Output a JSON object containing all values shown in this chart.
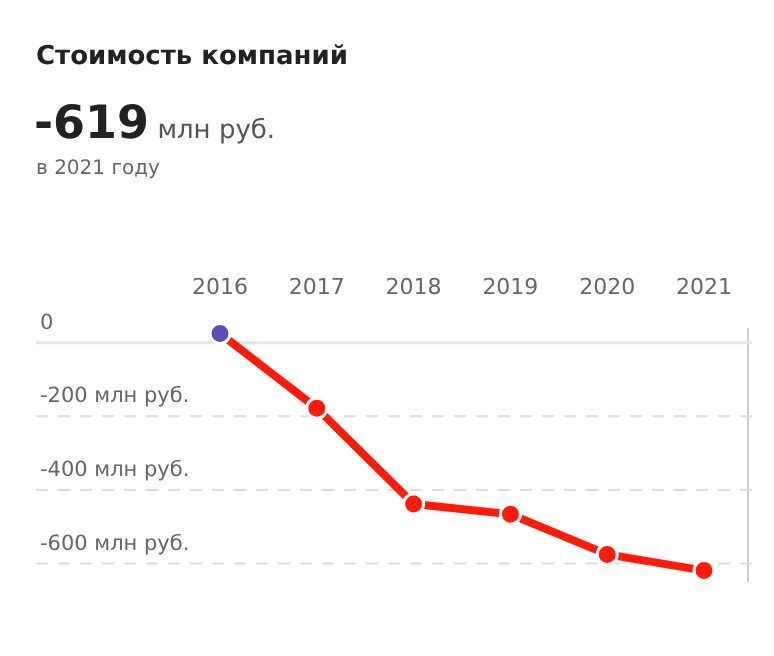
{
  "chart_data": {
    "type": "line",
    "title": "Стоимость компаний",
    "subtitle": "-619 млн руб.",
    "annotations": [
      "в 2021 году"
    ],
    "categories": [
      "2016",
      "2017",
      "2018",
      "2019",
      "2020",
      "2021"
    ],
    "series": [
      {
        "color": "#ff1a0a",
        "colors": [
          "#5b4fb5",
          "#ff1a0a",
          "#ff1a0a",
          "#ff1a0a",
          "#ff1a0a",
          "#ff1a0a"
        ],
        "values": [
          25,
          -178,
          -438,
          -466,
          -575,
          -619
        ]
      }
    ],
    "yticks": [
      0,
      {
        "value": -200,
        "label": "-200 млн руб."
      },
      {
        "value": -400,
        "label": "-400 млн руб."
      },
      {
        "value": -600,
        "label": "-600 млн руб."
      }
    ],
    "ylim": [
      -650,
      40
    ],
    "grid": "y",
    "marker": "circle",
    "line_style": "solid"
  }
}
